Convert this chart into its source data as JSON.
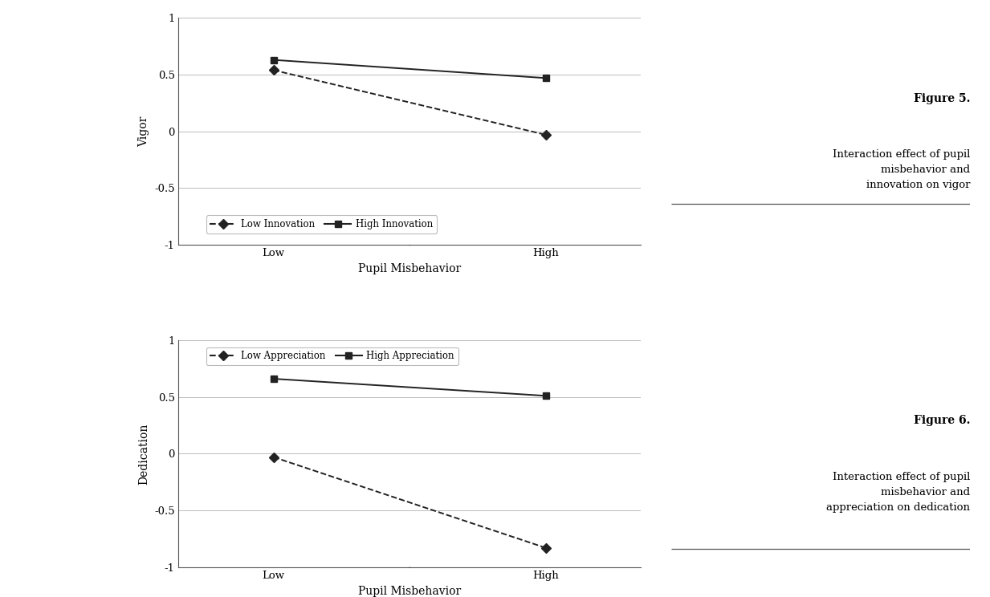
{
  "fig1": {
    "xlabel": "Pupil Misbehavior",
    "ylabel": "Vigor",
    "xtick_labels": [
      "Low",
      "High"
    ],
    "ylim": [
      -1,
      1
    ],
    "yticks": [
      -1,
      -0.5,
      0,
      0.5,
      1
    ],
    "ytick_labels": [
      "-1",
      "-0.5",
      "0",
      "0.5",
      "1"
    ],
    "low_innovation": [
      0.54,
      -0.03
    ],
    "high_innovation": [
      0.63,
      0.47
    ],
    "legend_labels": [
      "Low Innovation",
      "High Innovation"
    ],
    "caption_bold": "Figure 5.",
    "caption_text": "Interaction effect of pupil\nmisbehavior and\ninnovation on vigor"
  },
  "fig2": {
    "xlabel": "Pupil Misbehavior",
    "ylabel": "Dedication",
    "xtick_labels": [
      "Low",
      "High"
    ],
    "ylim": [
      -1,
      1
    ],
    "yticks": [
      -1,
      -0.5,
      0,
      0.5,
      1
    ],
    "ytick_labels": [
      "-1",
      "-0.5",
      "0",
      "0.5",
      "1"
    ],
    "low_appreciation": [
      -0.03,
      -0.83
    ],
    "high_appreciation": [
      0.66,
      0.51
    ],
    "legend_labels": [
      "Low Appreciation",
      "High Appreciation"
    ],
    "caption_bold": "Figure 6.",
    "caption_text": "Interaction effect of pupil\nmisbehavior and\nappreciation on dedication"
  },
  "marker_size": 6,
  "line_width": 1.4,
  "font_family": "DejaVu Serif",
  "axis_color": "#555555",
  "line_color": "#222222",
  "background_color": "#ffffff",
  "font_size_axis_label": 10,
  "font_size_tick": 9.5,
  "font_size_legend": 8.5,
  "font_size_caption_bold": 10,
  "font_size_caption": 9.5,
  "grid_color": "#bbbbbb",
  "caption_line_color": "#555555"
}
